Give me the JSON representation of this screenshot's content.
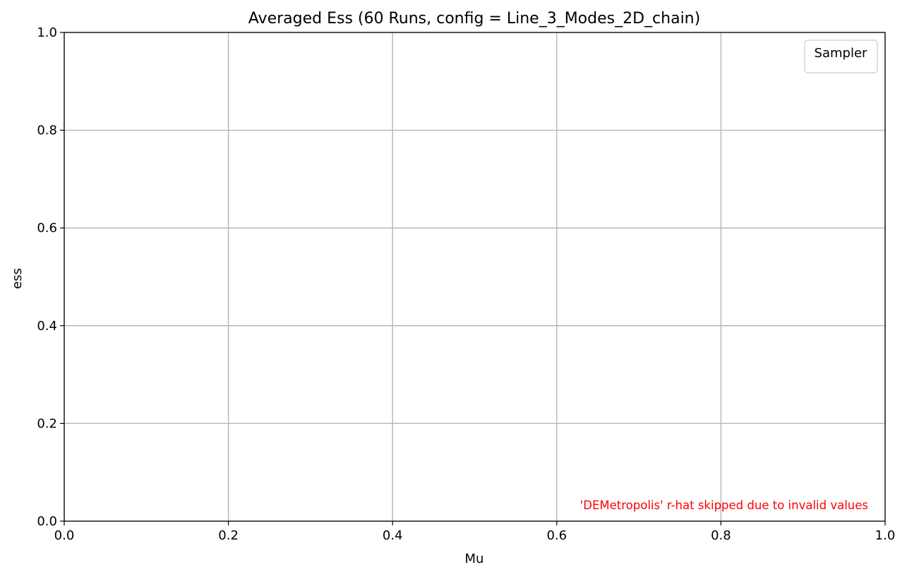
{
  "chart_data": {
    "type": "line",
    "title": "Averaged Ess (60 Runs, config = Line_3_Modes_2D_chain)",
    "xlabel": "Mu",
    "ylabel": "ess",
    "xlim": [
      0.0,
      1.0
    ],
    "ylim": [
      0.0,
      1.0
    ],
    "xticks": [
      0.0,
      0.2,
      0.4,
      0.6,
      0.8,
      1.0
    ],
    "xtick_labels": [
      "0.0",
      "0.2",
      "0.4",
      "0.6",
      "0.8",
      "1.0"
    ],
    "yticks": [
      0.0,
      0.2,
      0.4,
      0.6,
      0.8,
      1.0
    ],
    "ytick_labels": [
      "0.0",
      "0.2",
      "0.4",
      "0.6",
      "0.8",
      "1.0"
    ],
    "grid": true,
    "legend": {
      "title": "Sampler",
      "location": "upper right",
      "entries": []
    },
    "series": [],
    "annotation": {
      "text": "'DEMetropolis' r-hat skipped due to invalid values",
      "color": "#ff0000"
    }
  }
}
